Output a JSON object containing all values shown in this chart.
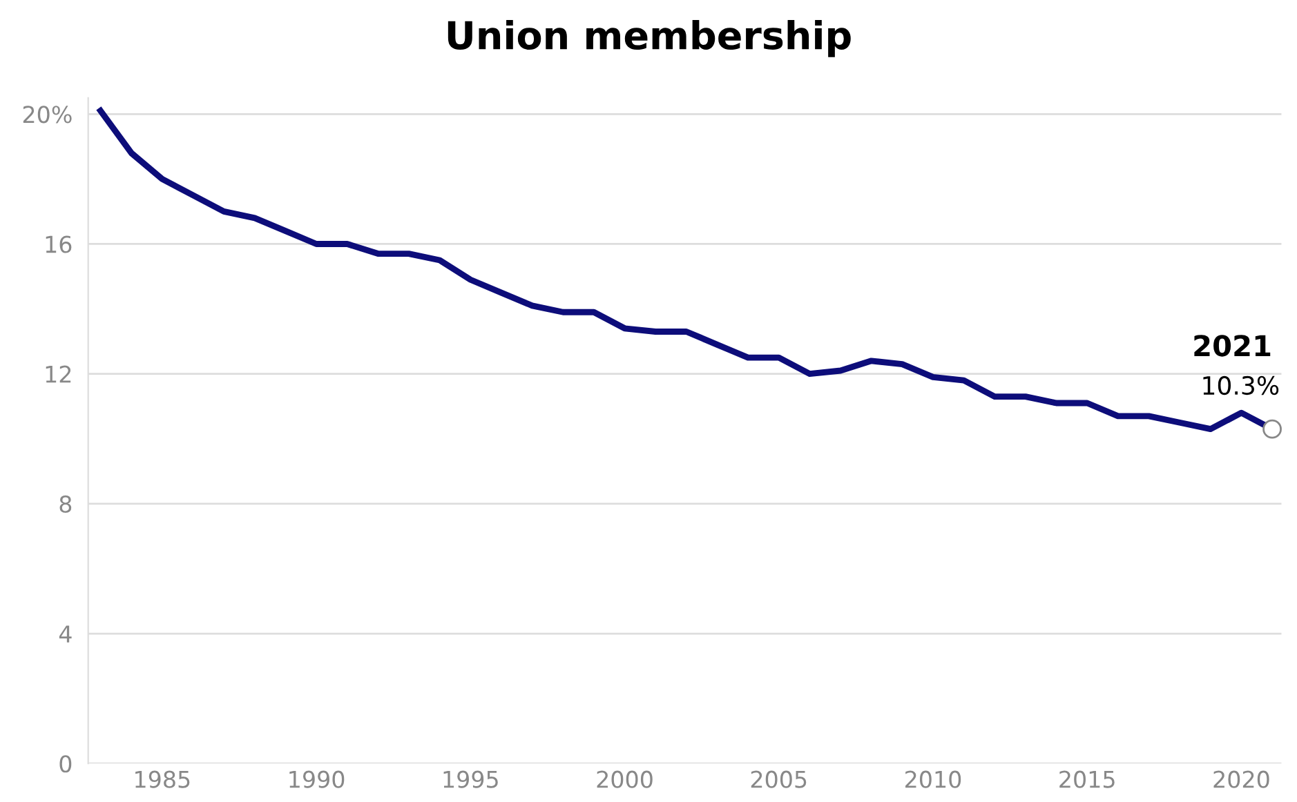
{
  "chart_data": {
    "type": "line",
    "title": "Union membership",
    "x": [
      1983,
      1984,
      1985,
      1986,
      1987,
      1988,
      1989,
      1990,
      1991,
      1992,
      1993,
      1994,
      1995,
      1996,
      1997,
      1998,
      1999,
      2000,
      2001,
      2002,
      2003,
      2004,
      2005,
      2006,
      2007,
      2008,
      2009,
      2010,
      2011,
      2012,
      2013,
      2014,
      2015,
      2016,
      2017,
      2018,
      2019,
      2020,
      2021
    ],
    "series": [
      {
        "color": "#0d0d7a",
        "values": [
          20.1,
          18.8,
          18.0,
          17.5,
          17.0,
          16.8,
          16.4,
          16.0,
          16.0,
          15.7,
          15.7,
          15.5,
          14.9,
          14.5,
          14.1,
          13.9,
          13.9,
          13.4,
          13.3,
          13.3,
          12.9,
          12.5,
          12.5,
          12.0,
          12.1,
          12.4,
          12.3,
          11.9,
          11.8,
          11.3,
          11.3,
          11.1,
          11.1,
          10.7,
          10.7,
          10.5,
          10.3,
          10.8,
          10.3
        ]
      }
    ],
    "xlim": [
      1982.6,
      2021.3
    ],
    "xticks": [
      1985,
      1990,
      1995,
      2000,
      2005,
      2010,
      2015,
      2020
    ],
    "ylim": [
      0,
      20.5
    ],
    "yticks": [
      0,
      4,
      8,
      12,
      {
        "value": 16,
        "label": "16"
      },
      {
        "value": 20,
        "label": "20%"
      }
    ],
    "grid": "y",
    "marker": "none",
    "line_style": "solid",
    "annotations": [
      {
        "text": "2021",
        "x": 2021,
        "y": 10.3
      },
      {
        "text": "10.3%",
        "x": 2021,
        "y": 10.3
      }
    ]
  }
}
